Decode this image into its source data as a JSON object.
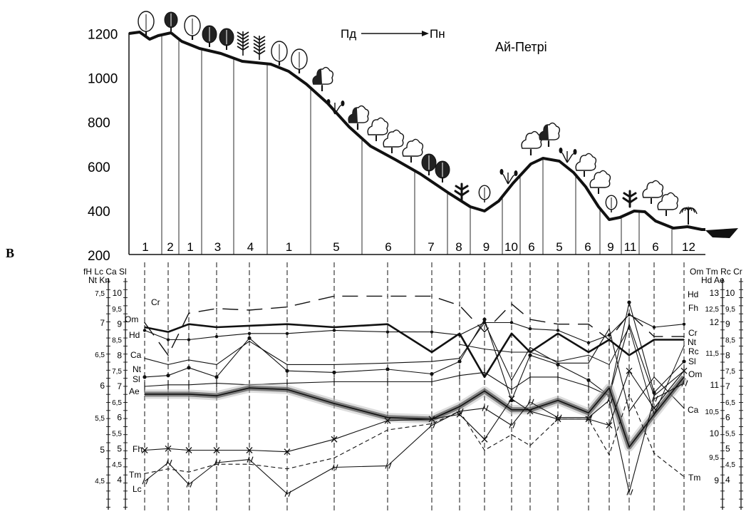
{
  "panel_label": "B",
  "profile": {
    "title": "Ай-Петрі",
    "direction_from": "Пд",
    "direction_to": "Пн",
    "elevation_ticks": [
      "1200",
      "1000",
      "800",
      "600",
      "400",
      "200"
    ],
    "elevation_values": [
      1200,
      1000,
      800,
      600,
      400,
      200
    ],
    "zones": [
      "1",
      "2",
      "1",
      "3",
      "4",
      "1",
      "5",
      "6",
      "7",
      "8",
      "9",
      "10",
      "6",
      "5",
      "6",
      "9",
      "11",
      "6",
      "12"
    ]
  },
  "left_axes": {
    "header_top": "fH Lc  Ca Sl",
    "header_bottom": "Nt       Kn",
    "outer_ticks": [
      "7,5",
      "7",
      "6,5",
      "6",
      "5,5",
      "5",
      "4,5"
    ],
    "inner_ticks": [
      "10",
      "9,5",
      "9",
      "8,5",
      "8",
      "7,5",
      "7",
      "6,5",
      "6",
      "5,5",
      "5",
      "4,5",
      "4"
    ]
  },
  "right_axes": {
    "header_top": "Om Tm  Rc Cr",
    "header_bottom": "Hd        Ae",
    "inner_ticks": [
      "10",
      "9,5",
      "9",
      "8,5",
      "8",
      "7,5",
      "7",
      "6,5",
      "6",
      "5,5",
      "5",
      "4,5",
      "4"
    ],
    "outer_ticks": [
      "13",
      "12,5",
      "12",
      "11,5",
      "11",
      "10,5",
      "10",
      "9,5",
      "9"
    ]
  },
  "left_labels": [
    "Cr",
    "Om",
    "Hd",
    "Ca",
    "Nt",
    "Sl",
    "Ae",
    "Fh",
    "Tm",
    "Lc"
  ],
  "right_labels": [
    "Hd",
    "Fh",
    "Cr",
    "Nt",
    "Rc",
    "Sl",
    "Om",
    "Ca",
    "Tm"
  ],
  "colors": {
    "line": "#111111",
    "ae_glow": "#222222",
    "tree_fill": "#ffffff"
  },
  "icons": [
    "deciduous-tree-icon",
    "conifer-tree-icon",
    "pine-tree-icon",
    "shrub-icon",
    "herb-icon"
  ],
  "chart_data": {
    "type": "line",
    "x_zones": [
      "1",
      "2",
      "1",
      "3",
      "4",
      "1",
      "5",
      "6",
      "7",
      "8",
      "9",
      "10",
      "6",
      "5",
      "6",
      "9",
      "11",
      "6",
      "12"
    ],
    "series": [
      {
        "name": "Cr",
        "values": [
          9.05,
          8.0,
          9.35,
          9.5,
          9.45,
          9.55,
          9.9,
          9.9,
          9.9,
          9.6,
          8.75,
          9.65,
          9.15,
          9.0,
          9.0,
          8.5,
          9.35,
          8.6,
          8.6
        ]
      },
      {
        "name": "Om",
        "values": [
          8.9,
          8.75,
          9.0,
          8.9,
          8.95,
          9.0,
          8.9,
          9.0,
          8.1,
          8.7,
          7.3,
          8.7,
          8.1,
          8.7,
          8.1,
          8.5,
          8.0,
          8.5,
          8.5
        ]
      },
      {
        "name": "Hd",
        "values": [
          8.8,
          8.5,
          8.5,
          8.6,
          8.7,
          8.7,
          8.8,
          8.75,
          8.75,
          8.65,
          9.05,
          9.05,
          8.85,
          8.8,
          8.4,
          8.65,
          9.3,
          8.9,
          9.0
        ]
      },
      {
        "name": "Ca",
        "values": [
          7.9,
          7.7,
          7.85,
          7.7,
          8.45,
          7.7,
          7.7,
          7.75,
          7.8,
          7.9,
          9.05,
          7.2,
          8.25,
          7.75,
          7.75,
          8.85,
          6.2,
          7.3,
          6.3
        ]
      },
      {
        "name": "Nt",
        "values": [
          7.3,
          7.35,
          7.6,
          7.3,
          8.55,
          7.5,
          7.45,
          7.55,
          7.4,
          7.8,
          9.15,
          6.55,
          8.0,
          7.7,
          7.2,
          6.7,
          9.7,
          6.8,
          7.8
        ]
      },
      {
        "name": "Sl",
        "values": [
          7.0,
          7.05,
          7.05,
          7.1,
          7.05,
          7.1,
          7.15,
          7.15,
          7.15,
          7.35,
          7.45,
          6.9,
          7.3,
          7.3,
          7.0,
          6.7,
          9.0,
          6.7,
          7.5
        ]
      },
      {
        "name": "Ae",
        "values": [
          6.75,
          6.75,
          6.75,
          6.7,
          6.95,
          6.9,
          6.45,
          6.0,
          5.95,
          6.35,
          6.85,
          6.25,
          6.25,
          6.55,
          6.15,
          6.95,
          5.05,
          6.1,
          7.3
        ]
      },
      {
        "name": "Fh",
        "values": [
          4.95,
          5.0,
          4.95,
          4.95,
          4.95,
          4.9,
          5.3,
          5.9,
          5.95,
          6.1,
          5.3,
          6.6,
          6.2,
          5.95,
          5.95,
          5.75,
          7.5,
          6.3,
          7.5
        ]
      },
      {
        "name": "Tm",
        "values": [
          4.2,
          4.35,
          4.25,
          4.5,
          4.5,
          4.35,
          4.7,
          5.6,
          5.8,
          6.2,
          4.95,
          5.45,
          5.1,
          5.95,
          5.95,
          4.8,
          6.75,
          4.85,
          4.1
        ]
      },
      {
        "name": "Lc",
        "values": [
          3.95,
          4.55,
          3.85,
          4.55,
          4.65,
          3.55,
          4.4,
          4.45,
          5.75,
          6.2,
          6.3,
          5.75,
          6.5,
          6.0,
          6.0,
          6.55,
          3.6,
          6.6,
          7.1
        ]
      },
      {
        "name": "Rc",
        "values": [
          null,
          null,
          null,
          null,
          null,
          null,
          null,
          null,
          null,
          8.35,
          8.2,
          8.1,
          8.1,
          7.8,
          8.0,
          7.7,
          8.9,
          6.1,
          8.3
        ]
      }
    ],
    "ylim": [
      3.5,
      10.5
    ]
  }
}
